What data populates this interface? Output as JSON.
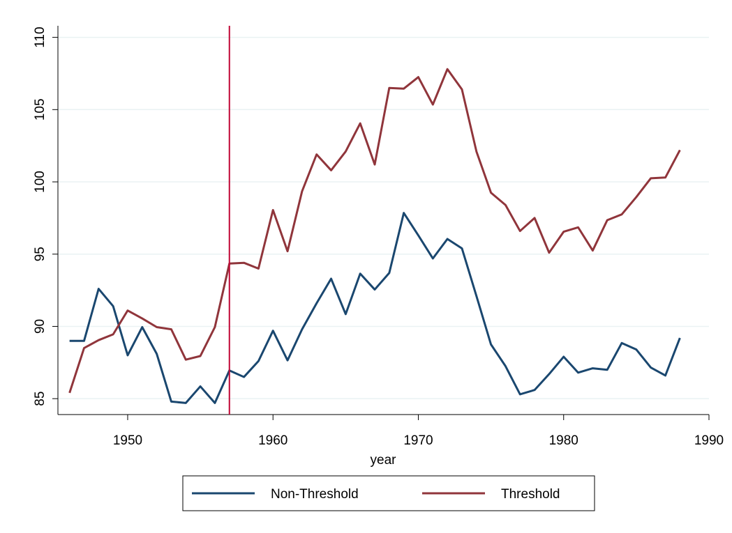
{
  "chart_data": {
    "type": "line",
    "x_label": "year",
    "x": [
      1946,
      1947,
      1948,
      1949,
      1950,
      1951,
      1952,
      1953,
      1954,
      1955,
      1956,
      1957,
      1958,
      1959,
      1960,
      1961,
      1962,
      1963,
      1964,
      1965,
      1966,
      1967,
      1968,
      1969,
      1970,
      1971,
      1972,
      1973,
      1974,
      1975,
      1976,
      1977,
      1978,
      1979,
      1980,
      1981,
      1982,
      1983,
      1984,
      1985,
      1986,
      1987,
      1988
    ],
    "series": [
      {
        "name": "Non-Threshold",
        "color": "#1a476f",
        "values": [
          89.0,
          89.0,
          92.6,
          91.4,
          88.0,
          89.95,
          88.1,
          84.8,
          84.7,
          85.85,
          84.7,
          86.95,
          86.5,
          87.6,
          89.7,
          87.65,
          89.8,
          91.6,
          93.3,
          90.85,
          93.65,
          92.55,
          93.7,
          97.85,
          96.3,
          94.7,
          96.05,
          95.4,
          92.1,
          88.75,
          87.25,
          85.3,
          85.6,
          86.7,
          87.9,
          86.8,
          87.1,
          87.0,
          88.85,
          88.4,
          87.15,
          86.6,
          89.2
        ]
      },
      {
        "name": "Threshold",
        "color": "#90353b",
        "values": [
          85.4,
          88.5,
          89.05,
          89.45,
          91.1,
          90.55,
          89.95,
          89.8,
          87.7,
          87.95,
          89.95,
          94.35,
          94.4,
          94.0,
          98.05,
          95.2,
          99.35,
          101.9,
          100.8,
          102.1,
          104.05,
          101.2,
          106.5,
          106.45,
          107.25,
          105.35,
          107.8,
          106.4,
          102.1,
          99.25,
          98.4,
          96.6,
          97.5,
          95.1,
          96.55,
          96.85,
          95.25,
          97.35,
          97.75,
          98.95,
          100.25,
          100.3,
          102.2
        ]
      }
    ],
    "vline": 1957,
    "vline_color": "#c10534",
    "xlim": [
      1945.2,
      1990
    ],
    "xticks": [
      1950,
      1960,
      1970,
      1980,
      1990
    ],
    "ylim": [
      83.9,
      110.8
    ],
    "yticks": [
      85,
      90,
      95,
      100,
      105,
      110
    ],
    "grid": true
  }
}
